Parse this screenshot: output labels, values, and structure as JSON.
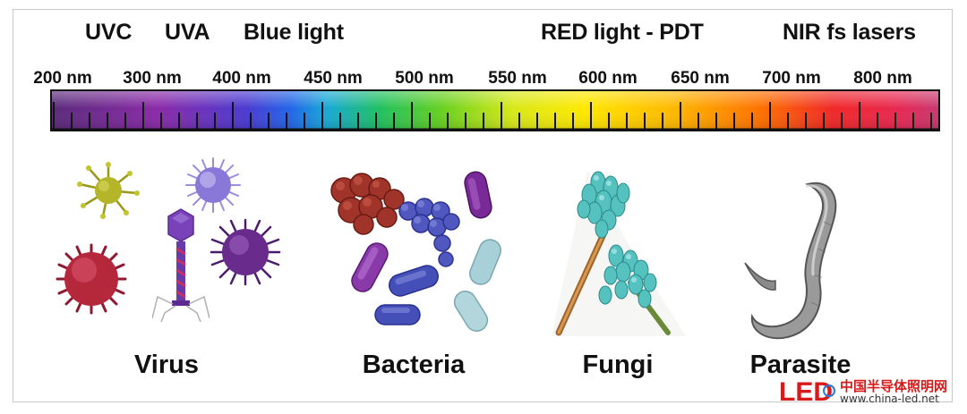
{
  "bands": [
    "UVC",
    "UVA",
    "Blue light",
    "RED light - PDT",
    "NIR fs lasers"
  ],
  "wavelengths": [
    "200 nm",
    "300 nm",
    "400 nm",
    "450 nm",
    "500 nm",
    "550 nm",
    "600 nm",
    "650 nm",
    "700 nm",
    "800 nm"
  ],
  "organisms": [
    "Virus",
    "Bacteria",
    "Fungi",
    "Parasite"
  ],
  "watermark": {
    "brand": "中国半导体照明网",
    "url": "www.china-led.net",
    "logo_text": "LED",
    "logo_color": "#d81a1a"
  },
  "colors": {
    "virus_yellow": "#b5b52a",
    "virus_lavender": "#8a78d8",
    "virus_red": "#b5283c",
    "virus_purple": "#6a2c8c",
    "phage": "#7a42b8",
    "bacteria_red": "#a0342a",
    "bacteria_blue": "#5058c0",
    "bacteria_purple": "#8a3aa8",
    "bacteria_cyan": "#a8d0d8",
    "fungi_teal": "#56c2c0",
    "parasite_gray": "#8a8a8a"
  }
}
